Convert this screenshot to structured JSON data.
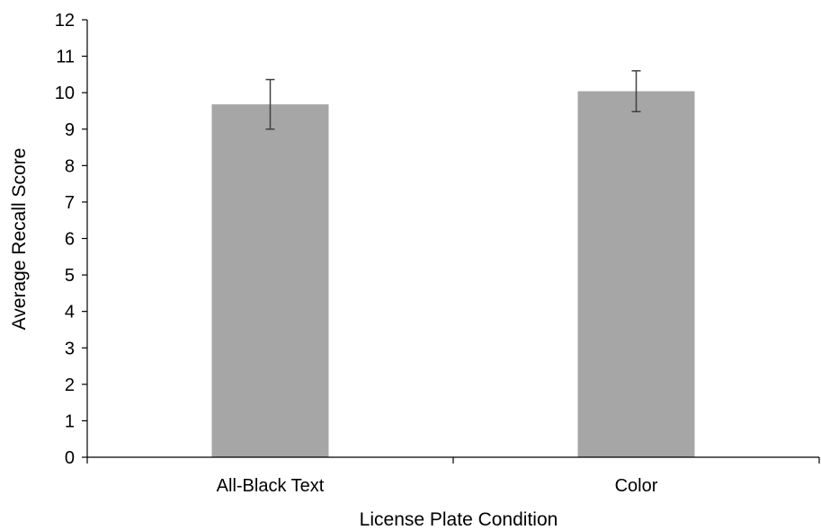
{
  "chart_data": {
    "type": "bar",
    "categories": [
      "All-Black Text",
      "Color"
    ],
    "values": [
      9.68,
      10.04
    ],
    "error_low": [
      9.0,
      9.48
    ],
    "error_high": [
      10.36,
      10.6
    ],
    "xlabel": "License Plate Condition",
    "ylabel": "Average Recall Score",
    "ylim": [
      0,
      12
    ],
    "yticks": [
      0,
      1,
      2,
      3,
      4,
      5,
      6,
      7,
      8,
      9,
      10,
      11,
      12
    ],
    "grid": false,
    "legend": "none",
    "colors": {
      "bar": "#a6a6a6",
      "axis": "#000000",
      "error_bar": "#404040"
    }
  }
}
